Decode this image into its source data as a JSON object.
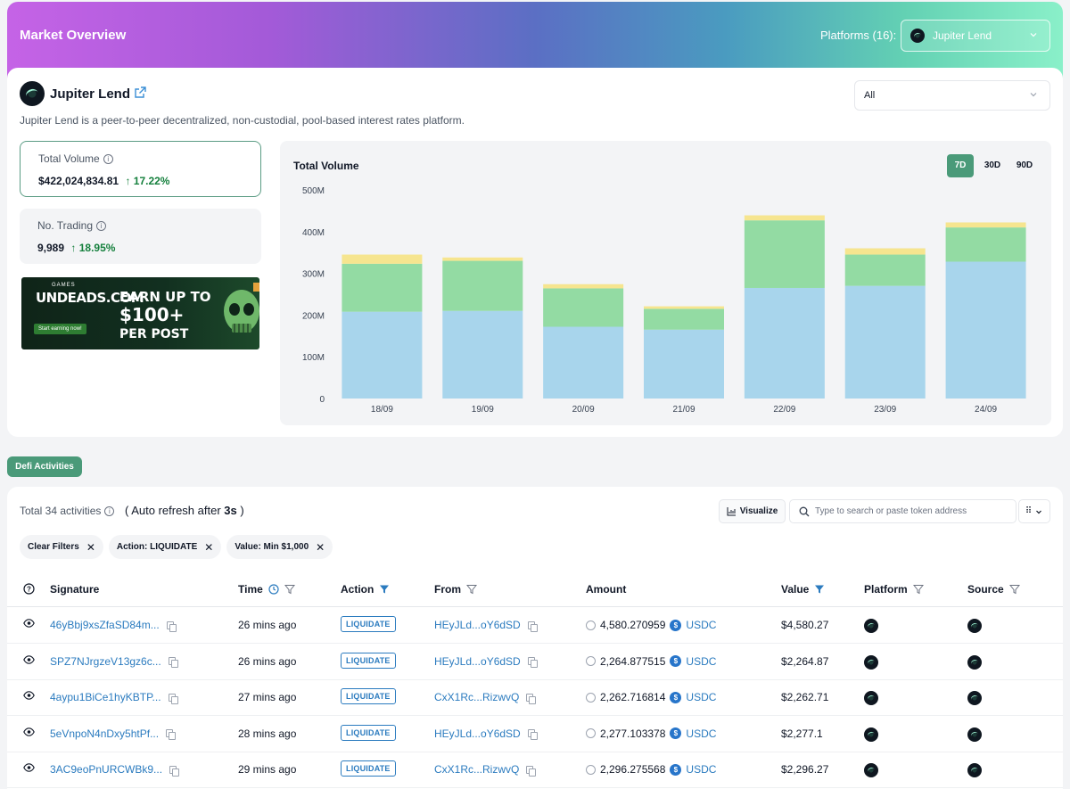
{
  "header": {
    "title": "Market Overview",
    "platforms_label": "Platforms (16):",
    "platform_selected": "Jupiter Lend"
  },
  "project": {
    "name": "Jupiter Lend",
    "description": "Jupiter Lend is a peer-to-peer decentralized, non-custodial, pool-based interest rates platform.",
    "filter_selected": "All"
  },
  "stats": {
    "total_volume": {
      "label": "Total Volume",
      "value": "$422,024,834.81",
      "change": "17.22%"
    },
    "no_trading": {
      "label": "No. Trading",
      "value": "9,989",
      "change": "18.95%"
    }
  },
  "banner": {
    "games": "GAMES",
    "site": "UNDEADS.COM",
    "cta": "Start earning now!",
    "line1": "EARN UP TO",
    "line2": "$100+",
    "line3": "PER POST"
  },
  "chart_data": {
    "type": "bar",
    "stacked": true,
    "title": "Total Volume",
    "categories": [
      "18/09",
      "19/09",
      "20/09",
      "21/09",
      "22/09",
      "23/09",
      "24/09"
    ],
    "series": [
      {
        "color": "#a8d5ec",
        "values": [
          208,
          210,
          172,
          165,
          265,
          270,
          328
        ]
      },
      {
        "color": "#93dba3",
        "values": [
          115,
          120,
          92,
          50,
          162,
          75,
          82
        ]
      },
      {
        "color": "#f6e58f",
        "values": [
          22,
          8,
          10,
          6,
          12,
          15,
          12
        ]
      }
    ],
    "ylim": [
      0,
      500
    ],
    "yticks": [
      "0",
      "100M",
      "200M",
      "300M",
      "400M",
      "500M"
    ],
    "ranges": [
      "7D",
      "30D",
      "90D"
    ],
    "active_range": "7D"
  },
  "tabs": {
    "defi": "Defi Activities"
  },
  "table": {
    "total": "Total 34 activities",
    "auto_refresh_prefix": "( Auto refresh after ",
    "auto_refresh_value": "3s",
    "auto_refresh_suffix": " )",
    "visualize": "Visualize",
    "search_placeholder": "Type to search or paste token address",
    "filters": [
      "Clear Filters",
      "Action: LIQUIDATE",
      "Value: Min $1,000"
    ],
    "columns": {
      "signature": "Signature",
      "time": "Time",
      "action": "Action",
      "from": "From",
      "amount": "Amount",
      "value": "Value",
      "platform": "Platform",
      "source": "Source"
    },
    "rows": [
      {
        "signature": "46yBbj9xsZfaSD84m...",
        "time": "26 mins ago",
        "action": "LIQUIDATE",
        "from": "HEyJLd...oY6dSD",
        "amount": "4,580.270959",
        "token": "USDC",
        "value": "$4,580.27"
      },
      {
        "signature": "SPZ7NJrgzeV13gz6c...",
        "time": "26 mins ago",
        "action": "LIQUIDATE",
        "from": "HEyJLd...oY6dSD",
        "amount": "2,264.877515",
        "token": "USDC",
        "value": "$2,264.87"
      },
      {
        "signature": "4aypu1BiCe1hyKBTP...",
        "time": "27 mins ago",
        "action": "LIQUIDATE",
        "from": "CxX1Rc...RizwvQ",
        "amount": "2,262.716814",
        "token": "USDC",
        "value": "$2,262.71"
      },
      {
        "signature": "5eVnpoN4nDxy5htPf...",
        "time": "28 mins ago",
        "action": "LIQUIDATE",
        "from": "HEyJLd...oY6dSD",
        "amount": "2,277.103378",
        "token": "USDC",
        "value": "$2,277.1"
      },
      {
        "signature": "3AC9eoPnURCWBk9...",
        "time": "29 mins ago",
        "action": "LIQUIDATE",
        "from": "CxX1Rc...RizwvQ",
        "amount": "2,296.275568",
        "token": "USDC",
        "value": "$2,296.27"
      }
    ]
  },
  "colors": {
    "accent": "#4a9a79",
    "link": "#2b7bbf",
    "positive": "#15803d"
  }
}
